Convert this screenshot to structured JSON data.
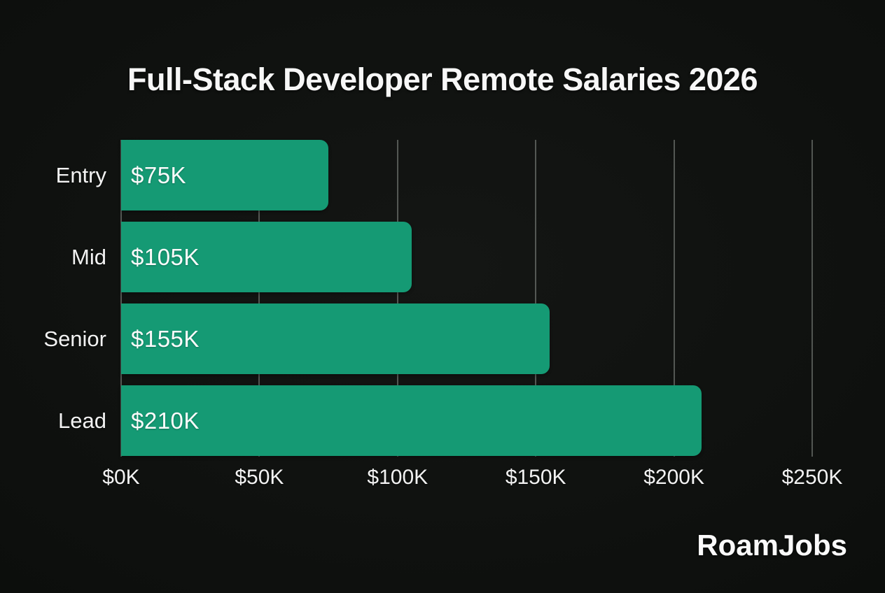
{
  "title": "Full-Stack Developer Remote Salaries 2026",
  "brand": "RoamJobs",
  "colors": {
    "background": "#0d0f0d",
    "bar": "#159a74",
    "gridline": "#969b96",
    "text": "#f5f5f5"
  },
  "chart_data": {
    "type": "bar",
    "orientation": "horizontal",
    "title": "Full-Stack Developer Remote Salaries 2026",
    "categories": [
      "Entry",
      "Mid",
      "Senior",
      "Lead"
    ],
    "values": [
      75,
      105,
      155,
      210
    ],
    "value_labels": [
      "$75K",
      "$105K",
      "$155K",
      "$210K"
    ],
    "x_ticks": [
      {
        "value": 0,
        "label": "$0K"
      },
      {
        "value": 50,
        "label": "$50K"
      },
      {
        "value": 100,
        "label": "$100K"
      },
      {
        "value": 150,
        "label": "$150K"
      },
      {
        "value": 200,
        "label": "$200K"
      },
      {
        "value": 250,
        "label": "$250K"
      }
    ],
    "xlim": [
      0,
      250
    ],
    "xlabel": "",
    "ylabel": "",
    "grid": true,
    "legend": false,
    "bar_color": "#159a74",
    "background_color": "#0d0f0d"
  }
}
